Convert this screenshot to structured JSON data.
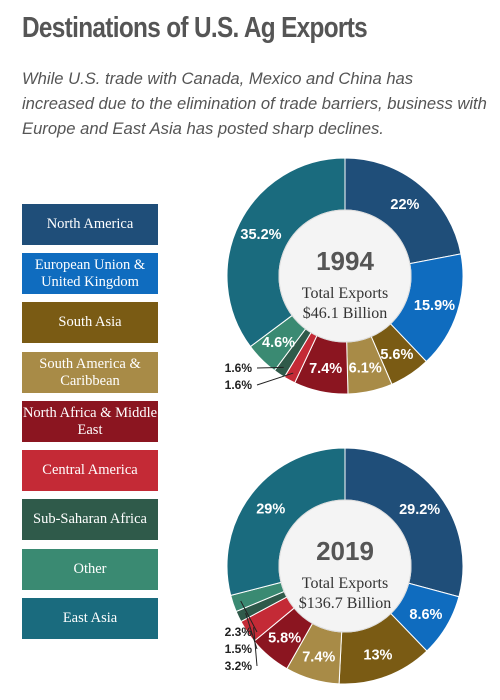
{
  "title": "Destinations of U.S. Ag Exports",
  "subtitle": "While U.S. trade with Canada, Mexico and China has increased due to the elimination of trade barriers, business with Europe and East Asia has posted sharp declines.",
  "legend": [
    {
      "label": "North America",
      "color": "#1f4e79"
    },
    {
      "label": "European Union & United Kingdom",
      "color": "#0f6cbf"
    },
    {
      "label": "South Asia",
      "color": "#7a5b14"
    },
    {
      "label": "South America & Caribbean",
      "color": "#a88b47"
    },
    {
      "label": "North Africa & Middle East",
      "color": "#8b1520"
    },
    {
      "label": "Central America",
      "color": "#c42a36"
    },
    {
      "label": "Sub-Saharan Africa",
      "color": "#2f5a4a"
    },
    {
      "label": "Other",
      "color": "#3a8a72"
    },
    {
      "label": "East Asia",
      "color": "#1a6b7e"
    }
  ],
  "chart_data": [
    {
      "type": "pie",
      "year_label": "1994",
      "center_line1": "Total Exports",
      "center_line2": "$46.1 Billion",
      "categories": [
        "North America",
        "European Union & United Kingdom",
        "South Asia",
        "South America & Caribbean",
        "North Africa & Middle East",
        "Central America",
        "Sub-Saharan Africa",
        "Other",
        "East Asia"
      ],
      "values": [
        22,
        15.9,
        5.6,
        6.1,
        7.4,
        1.6,
        1.6,
        4.6,
        35.2
      ],
      "labels": [
        "22%",
        "15.9%",
        "5.6%",
        "6.1%",
        "7.4%",
        "1.6%",
        "1.6%",
        "4.6%",
        "35.2%"
      ]
    },
    {
      "type": "pie",
      "year_label": "2019",
      "center_line1": "Total Exports",
      "center_line2": "$136.7 Billion",
      "categories": [
        "North America",
        "European Union & United Kingdom",
        "South Asia",
        "South America & Caribbean",
        "North Africa & Middle East",
        "Central America",
        "Sub-Saharan Africa",
        "Other",
        "East Asia"
      ],
      "values": [
        29.2,
        8.6,
        13,
        7.4,
        5.8,
        3.2,
        1.5,
        2.3,
        29
      ],
      "labels": [
        "29.2%",
        "8.6%",
        "13%",
        "7.4%",
        "5.8%",
        "3.2%",
        "1.5%",
        "2.3%",
        "29%"
      ]
    }
  ]
}
